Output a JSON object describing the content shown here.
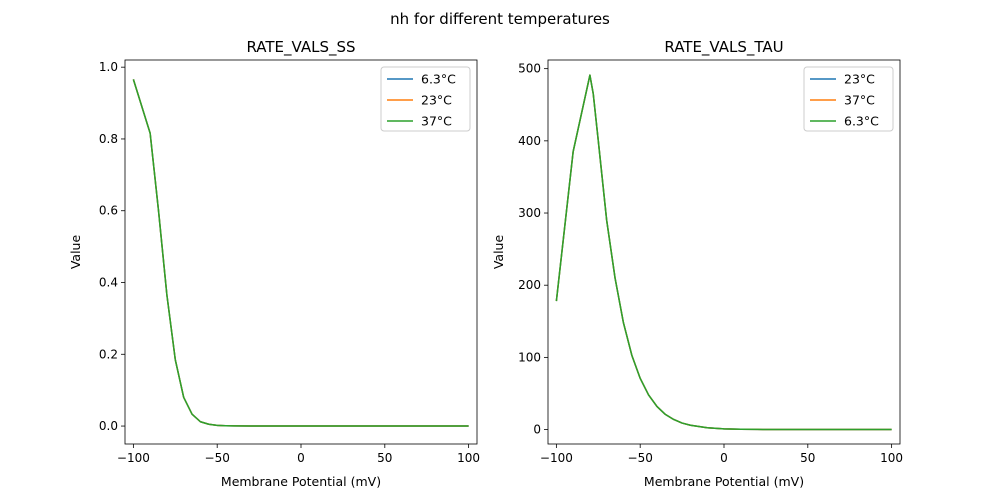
{
  "figure": {
    "suptitle": "nh for different temperatures"
  },
  "colors": {
    "blue": "#1f77b4",
    "orange": "#ff7f0e",
    "green": "#2ca02c"
  },
  "chart_data": [
    {
      "type": "line",
      "title": "RATE_VALS_SS",
      "xlabel": "Membrane Potential (mV)",
      "ylabel": "Value",
      "xlim": [
        -105,
        105
      ],
      "ylim": [
        -0.05,
        1.02
      ],
      "xticks": [
        -100,
        -50,
        0,
        50,
        100
      ],
      "xtick_labels": [
        "−100",
        "−50",
        "0",
        "50",
        "100"
      ],
      "yticks": [
        0.0,
        0.2,
        0.4,
        0.6,
        0.8,
        1.0
      ],
      "ytick_labels": [
        "0.0",
        "0.2",
        "0.4",
        "0.6",
        "0.8",
        "1.0"
      ],
      "grid": false,
      "legend_position": "top-right",
      "x": [
        -100,
        -90,
        -85,
        -80,
        -75,
        -70,
        -65,
        -60,
        -55,
        -50,
        -45,
        -40,
        -30,
        -20,
        -10,
        0,
        10,
        20,
        30,
        40,
        50,
        60,
        70,
        80,
        90,
        100
      ],
      "series": [
        {
          "name": "6.3°C",
          "color": "blue",
          "values": [
            0.966,
            0.816,
            0.6,
            0.365,
            0.185,
            0.08,
            0.033,
            0.012,
            0.005,
            0.002,
            0.001,
            0.0005,
            0.0001,
            0,
            0,
            0,
            0,
            0,
            0,
            0,
            0,
            0,
            0,
            0,
            0,
            0
          ]
        },
        {
          "name": "23°C",
          "color": "orange",
          "values": [
            0.966,
            0.816,
            0.6,
            0.365,
            0.185,
            0.08,
            0.033,
            0.012,
            0.005,
            0.002,
            0.001,
            0.0005,
            0.0001,
            0,
            0,
            0,
            0,
            0,
            0,
            0,
            0,
            0,
            0,
            0,
            0,
            0
          ]
        },
        {
          "name": "37°C",
          "color": "green",
          "values": [
            0.966,
            0.816,
            0.6,
            0.365,
            0.185,
            0.08,
            0.033,
            0.012,
            0.005,
            0.002,
            0.001,
            0.0005,
            0.0001,
            0,
            0,
            0,
            0,
            0,
            0,
            0,
            0,
            0,
            0,
            0,
            0,
            0
          ]
        }
      ]
    },
    {
      "type": "line",
      "title": "RATE_VALS_TAU",
      "xlabel": "Membrane Potential (mV)",
      "ylabel": "Value",
      "xlim": [
        -105,
        105
      ],
      "ylim": [
        -20,
        512
      ],
      "xticks": [
        -100,
        -50,
        0,
        50,
        100
      ],
      "xtick_labels": [
        "−100",
        "−50",
        "0",
        "50",
        "100"
      ],
      "yticks": [
        0,
        100,
        200,
        300,
        400,
        500
      ],
      "ytick_labels": [
        "0",
        "100",
        "200",
        "300",
        "400",
        "500"
      ],
      "grid": false,
      "legend_position": "top-right",
      "x": [
        -100,
        -90,
        -80,
        -78,
        -75,
        -70,
        -65,
        -60,
        -55,
        -50,
        -45,
        -40,
        -35,
        -30,
        -25,
        -20,
        -10,
        0,
        10,
        20,
        30,
        40,
        50,
        60,
        70,
        80,
        90,
        100
      ],
      "series": [
        {
          "name": "23°C",
          "color": "blue",
          "values": [
            178,
            385,
            491,
            465,
            400,
            290,
            210,
            148,
            103,
            71,
            48,
            32,
            21,
            14,
            9,
            6,
            2.5,
            1,
            0.4,
            0.2,
            0.1,
            0,
            0,
            0,
            0,
            0,
            0,
            0
          ]
        },
        {
          "name": "37°C",
          "color": "orange",
          "values": [
            178,
            385,
            491,
            465,
            400,
            290,
            210,
            148,
            103,
            71,
            48,
            32,
            21,
            14,
            9,
            6,
            2.5,
            1,
            0.4,
            0.2,
            0.1,
            0,
            0,
            0,
            0,
            0,
            0,
            0
          ]
        },
        {
          "name": "6.3°C",
          "color": "green",
          "values": [
            178,
            385,
            491,
            465,
            400,
            290,
            210,
            148,
            103,
            71,
            48,
            32,
            21,
            14,
            9,
            6,
            2.5,
            1,
            0.4,
            0.2,
            0.1,
            0,
            0,
            0,
            0,
            0,
            0,
            0
          ]
        }
      ]
    }
  ]
}
